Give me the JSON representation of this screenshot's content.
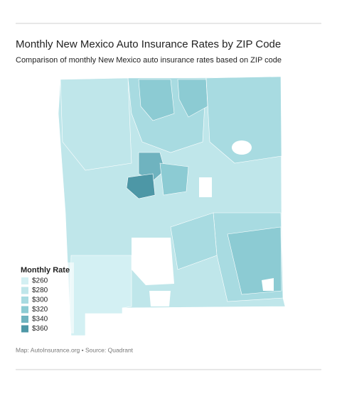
{
  "header": {
    "title": "Monthly New Mexico Auto Insurance Rates by ZIP Code",
    "subtitle": "Comparison of monthly New Mexico auto insurance rates based on ZIP code"
  },
  "legend": {
    "title": "Monthly Rate",
    "items": [
      {
        "label": "$260",
        "color": "#d3f0f3"
      },
      {
        "label": "$280",
        "color": "#bfe6ea"
      },
      {
        "label": "$300",
        "color": "#a8dbe1"
      },
      {
        "label": "$320",
        "color": "#8ccbd3"
      },
      {
        "label": "$340",
        "color": "#6fb3bf"
      },
      {
        "label": "$360",
        "color": "#4d97a6"
      }
    ]
  },
  "footer": {
    "source": "Map: AutoInsurance.org • Source: Quadrant"
  }
}
